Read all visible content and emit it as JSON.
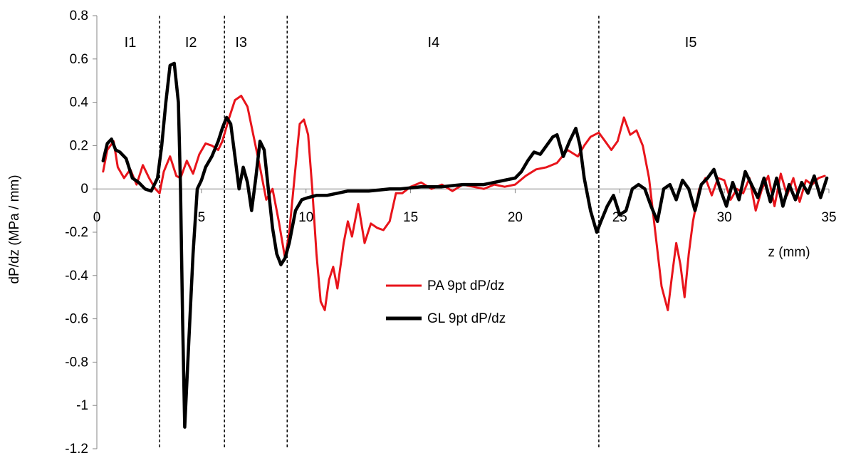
{
  "chart_data": {
    "type": "line",
    "title": "",
    "xlabel": "z (mm)",
    "ylabel": "dP/dz (MPa / mm)",
    "xlim": [
      0,
      35
    ],
    "ylim": [
      -1.2,
      0.8
    ],
    "x_ticks": [
      0,
      5,
      10,
      15,
      20,
      25,
      30,
      35
    ],
    "y_ticks": [
      -1.2,
      -1,
      -0.8,
      -0.6,
      -0.4,
      -0.2,
      0,
      0.2,
      0.4,
      0.6,
      0.8
    ],
    "x_tick_labels": [
      "0",
      "5",
      "10",
      "15",
      "20",
      "25",
      "30",
      "35"
    ],
    "y_tick_labels": [
      "-1.2",
      "-1",
      "-0.8",
      "-0.6",
      "-0.4",
      "-0.2",
      "0",
      "0.2",
      "0.4",
      "0.6",
      "0.8"
    ],
    "grid": false,
    "legend_position": "center",
    "regions": [
      {
        "label": "I1",
        "x_start": 0,
        "x_end": 3.0
      },
      {
        "label": "I2",
        "x_start": 3.0,
        "x_end": 6.1
      },
      {
        "label": "I3",
        "x_start": 6.1,
        "x_end": 9.1
      },
      {
        "label": "I4",
        "x_start": 9.1,
        "x_end": 24.0
      },
      {
        "label": "I5",
        "x_start": 24.0,
        "x_end": 35
      }
    ],
    "boundaries": [
      3.0,
      6.1,
      9.1,
      24.0
    ],
    "series": [
      {
        "name": "PA 9pt dP/dz",
        "color": "#e8141b",
        "x": [
          0.3,
          0.5,
          0.8,
          1.0,
          1.3,
          1.6,
          1.9,
          2.2,
          2.5,
          2.8,
          3.0,
          3.2,
          3.5,
          3.8,
          4.0,
          4.3,
          4.6,
          4.9,
          5.2,
          5.5,
          5.8,
          6.0,
          6.3,
          6.6,
          6.9,
          7.2,
          7.5,
          7.8,
          8.1,
          8.4,
          8.7,
          9.0,
          9.2,
          9.5,
          9.7,
          9.9,
          10.1,
          10.3,
          10.5,
          10.7,
          10.9,
          11.1,
          11.3,
          11.5,
          11.8,
          12.0,
          12.2,
          12.5,
          12.8,
          13.1,
          13.4,
          13.7,
          14.0,
          14.3,
          14.6,
          15.0,
          15.5,
          16.0,
          16.5,
          17.0,
          17.5,
          18.0,
          18.5,
          19.0,
          19.5,
          20.0,
          20.5,
          21.0,
          21.5,
          22.0,
          22.5,
          23.0,
          23.3,
          23.6,
          24.0,
          24.3,
          24.6,
          24.9,
          25.2,
          25.5,
          25.8,
          26.1,
          26.4,
          26.7,
          27.0,
          27.3,
          27.5,
          27.7,
          27.9,
          28.1,
          28.3,
          28.5,
          28.8,
          29.1,
          29.4,
          29.7,
          30.0,
          30.3,
          30.6,
          30.9,
          31.2,
          31.5,
          31.8,
          32.1,
          32.4,
          32.7,
          33.0,
          33.3,
          33.6,
          33.9,
          34.2,
          34.5,
          34.8
        ],
        "y": [
          0.08,
          0.18,
          0.22,
          0.1,
          0.05,
          0.09,
          0.02,
          0.11,
          0.05,
          0.0,
          -0.02,
          0.08,
          0.15,
          0.06,
          0.05,
          0.13,
          0.07,
          0.16,
          0.21,
          0.2,
          0.18,
          0.22,
          0.32,
          0.41,
          0.43,
          0.38,
          0.24,
          0.1,
          -0.05,
          0.0,
          -0.15,
          -0.32,
          -0.2,
          0.1,
          0.3,
          0.32,
          0.25,
          0.0,
          -0.3,
          -0.52,
          -0.56,
          -0.42,
          -0.36,
          -0.46,
          -0.25,
          -0.15,
          -0.22,
          -0.07,
          -0.25,
          -0.16,
          -0.18,
          -0.19,
          -0.15,
          -0.02,
          -0.02,
          0.01,
          0.03,
          0.0,
          0.02,
          -0.01,
          0.02,
          0.01,
          0.0,
          0.02,
          0.01,
          0.02,
          0.06,
          0.09,
          0.1,
          0.12,
          0.18,
          0.15,
          0.2,
          0.24,
          0.26,
          0.22,
          0.18,
          0.22,
          0.33,
          0.25,
          0.27,
          0.2,
          0.05,
          -0.2,
          -0.45,
          -0.56,
          -0.4,
          -0.25,
          -0.35,
          -0.5,
          -0.3,
          -0.15,
          0.0,
          0.05,
          -0.03,
          0.05,
          0.04,
          -0.05,
          0.0,
          -0.02,
          0.05,
          -0.1,
          0.0,
          0.06,
          -0.08,
          0.07,
          -0.03,
          0.05,
          -0.06,
          0.04,
          0.02,
          0.05,
          0.06
        ]
      },
      {
        "name": "GL 9pt dP/dz",
        "color": "#000000",
        "x": [
          0.3,
          0.5,
          0.7,
          0.9,
          1.1,
          1.4,
          1.7,
          2.0,
          2.3,
          2.6,
          2.9,
          3.1,
          3.3,
          3.5,
          3.7,
          3.9,
          4.0,
          4.1,
          4.2,
          4.4,
          4.6,
          4.8,
          5.0,
          5.2,
          5.5,
          5.8,
          6.0,
          6.2,
          6.4,
          6.6,
          6.8,
          7.0,
          7.2,
          7.4,
          7.6,
          7.8,
          8.0,
          8.2,
          8.4,
          8.6,
          8.8,
          9.0,
          9.2,
          9.5,
          9.8,
          10.1,
          10.5,
          11.0,
          11.5,
          12.0,
          12.5,
          13.0,
          13.5,
          14.0,
          14.5,
          15.0,
          15.5,
          16.0,
          16.5,
          17.0,
          17.5,
          18.0,
          18.5,
          19.0,
          19.5,
          20.0,
          20.3,
          20.6,
          20.9,
          21.2,
          21.5,
          21.8,
          22.0,
          22.3,
          22.6,
          22.9,
          23.1,
          23.3,
          23.6,
          23.9,
          24.1,
          24.4,
          24.7,
          25.0,
          25.3,
          25.6,
          25.9,
          26.2,
          26.5,
          26.8,
          27.1,
          27.4,
          27.7,
          28.0,
          28.3,
          28.6,
          28.9,
          29.2,
          29.5,
          29.8,
          30.1,
          30.4,
          30.7,
          31.0,
          31.3,
          31.6,
          31.9,
          32.2,
          32.5,
          32.8,
          33.1,
          33.4,
          33.7,
          34.0,
          34.3,
          34.6,
          34.9
        ],
        "y": [
          0.13,
          0.21,
          0.23,
          0.18,
          0.17,
          0.14,
          0.05,
          0.03,
          0.0,
          -0.01,
          0.05,
          0.2,
          0.4,
          0.57,
          0.58,
          0.4,
          0.0,
          -0.6,
          -1.1,
          -0.7,
          -0.3,
          0.0,
          0.04,
          0.1,
          0.15,
          0.22,
          0.28,
          0.33,
          0.3,
          0.15,
          0.0,
          0.1,
          0.03,
          -0.1,
          0.05,
          0.22,
          0.18,
          0.0,
          -0.18,
          -0.3,
          -0.35,
          -0.32,
          -0.25,
          -0.1,
          -0.05,
          -0.04,
          -0.03,
          -0.03,
          -0.02,
          -0.01,
          -0.01,
          -0.01,
          -0.005,
          0.0,
          0.0,
          0.005,
          0.01,
          0.01,
          0.01,
          0.015,
          0.02,
          0.02,
          0.02,
          0.03,
          0.04,
          0.05,
          0.08,
          0.13,
          0.17,
          0.16,
          0.2,
          0.24,
          0.25,
          0.15,
          0.22,
          0.28,
          0.2,
          0.05,
          -0.1,
          -0.2,
          -0.15,
          -0.08,
          -0.03,
          -0.12,
          -0.1,
          0.0,
          0.02,
          0.0,
          -0.08,
          -0.15,
          0.0,
          0.02,
          -0.05,
          0.04,
          0.0,
          -0.1,
          0.02,
          0.05,
          0.09,
          0.0,
          -0.08,
          0.03,
          -0.05,
          0.08,
          0.02,
          -0.04,
          0.05,
          -0.06,
          0.05,
          -0.08,
          0.02,
          -0.05,
          0.03,
          -0.02,
          0.06,
          -0.04,
          0.05
        ]
      }
    ]
  }
}
